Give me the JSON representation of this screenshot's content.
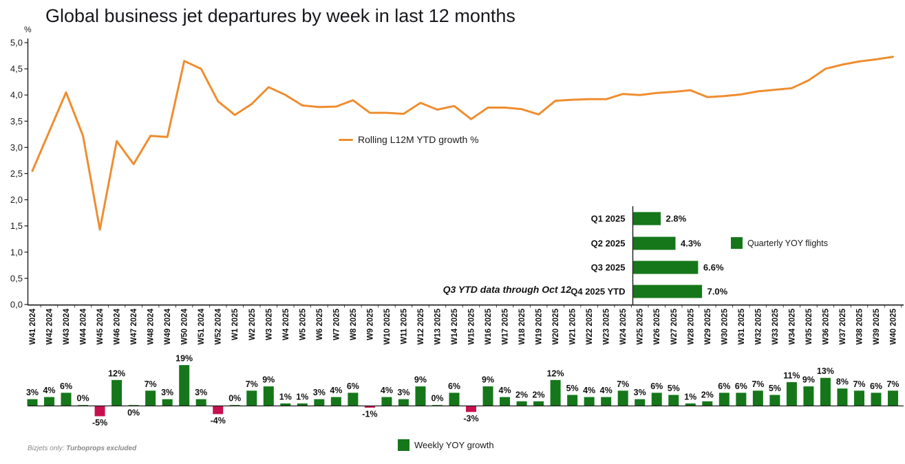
{
  "title": "Global business jet departures by week in last 12 months",
  "y_axis_unit": "%",
  "colors": {
    "line_orange": "#EF8D2F",
    "bar_green": "#15771A",
    "bar_red": "#C8104E",
    "axis": "#1A1A1A",
    "footer_gray": "#8A8A8A"
  },
  "weeks": [
    "W41 2024",
    "W42 2024",
    "W43 2024",
    "W44 2024",
    "W45 2024",
    "W46 2024",
    "W47 2024",
    "W48 2024",
    "W49 2024",
    "W50 2024",
    "W51 2024",
    "W52 2024",
    "W1 2025",
    "W2 2025",
    "W3 2025",
    "W4 2025",
    "W5 2025",
    "W6 2025",
    "W7 2025",
    "W8 2025",
    "W9 2025",
    "W10 2025",
    "W11 2025",
    "W12 2025",
    "W13 2025",
    "W14 2025",
    "W15 2025",
    "W16 2025",
    "W17 2025",
    "W18 2025",
    "W19 2025",
    "W20 2025",
    "W21 2025",
    "W22 2025",
    "W23 2025",
    "W24 2025",
    "W25 2025",
    "W26 2025",
    "W27 2025",
    "W28 2025",
    "W29 2025",
    "W30 2025",
    "W31 2025",
    "W32 2025",
    "W33 2025",
    "W34 2025",
    "W35 2025",
    "W36 2025",
    "W37 2025",
    "W38 2025",
    "W39 2025",
    "W40 2025"
  ],
  "chart_data": [
    {
      "type": "line",
      "legend": "Rolling L12M YTD growth %",
      "ylabel": "%",
      "ylim": [
        0,
        5
      ],
      "ytick_labels": [
        "0,0",
        "0,5",
        "1,0",
        "1,5",
        "2,0",
        "2,5",
        "3,0",
        "3,5",
        "4,0",
        "4,5",
        "5,0"
      ],
      "x_categories": "weeks",
      "values": [
        2.55,
        3.3,
        4.05,
        3.22,
        1.43,
        3.12,
        2.68,
        3.22,
        3.2,
        4.65,
        4.5,
        3.88,
        3.62,
        3.83,
        4.15,
        4.0,
        3.8,
        3.77,
        3.78,
        3.9,
        3.66,
        3.66,
        3.64,
        3.85,
        3.72,
        3.79,
        3.54,
        3.76,
        3.76,
        3.73,
        3.63,
        3.89,
        3.91,
        3.92,
        3.92,
        4.02,
        4.0,
        4.04,
        4.06,
        4.09,
        3.96,
        3.98,
        4.01,
        4.07,
        4.1,
        4.13,
        4.28,
        4.5,
        4.58,
        4.64,
        4.68,
        4.73
      ]
    },
    {
      "type": "bar",
      "orientation": "horizontal",
      "legend": "Quarterly YOY flights",
      "annotation": "Q3 YTD data through Oct 12",
      "categories": [
        "Q1 2025",
        "Q2 2025",
        "Q3 2025",
        "Q4 2025 YTD"
      ],
      "values": [
        2.8,
        4.3,
        6.6,
        7.0
      ],
      "labels": [
        "2.8%",
        "4.3%",
        "6.6%",
        "7.0%"
      ]
    },
    {
      "type": "bar",
      "orientation": "vertical",
      "legend": "Weekly YOY growth",
      "x_categories": "weeks",
      "values": [
        3,
        4,
        6,
        0,
        -5,
        12,
        0,
        7,
        3,
        19,
        3,
        -4,
        0,
        7,
        9,
        1,
        1,
        3,
        4,
        6,
        -1,
        4,
        3,
        9,
        0,
        6,
        -3,
        9,
        4,
        2,
        2,
        12,
        5,
        4,
        4,
        7,
        3,
        6,
        5,
        1,
        2,
        6,
        6,
        7,
        5,
        11,
        9,
        13,
        8,
        7,
        6,
        7
      ],
      "labels": [
        "3%",
        "4%",
        "6%",
        "0%",
        "-5%",
        "12%",
        "0%",
        "7%",
        "3%",
        "19%",
        "3%",
        "-4%",
        "0%",
        "7%",
        "9%",
        "1%",
        "1%",
        "3%",
        "4%",
        "6%",
        "-1%",
        "4%",
        "3%",
        "9%",
        "0%",
        "6%",
        "-3%",
        "9%",
        "4%",
        "2%",
        "2%",
        "12%",
        "5%",
        "4%",
        "4%",
        "7%",
        "3%",
        "6%",
        "5%",
        "1%",
        "2%",
        "6%",
        "6%",
        "7%",
        "5%",
        "11%",
        "9%",
        "13%",
        "8%",
        "7%",
        "6%",
        "7%"
      ],
      "zero_label_below_indices": [
        6
      ]
    }
  ],
  "footer": {
    "prefix": "Bizjets only: ",
    "emphasis": "Turboprops excluded"
  }
}
